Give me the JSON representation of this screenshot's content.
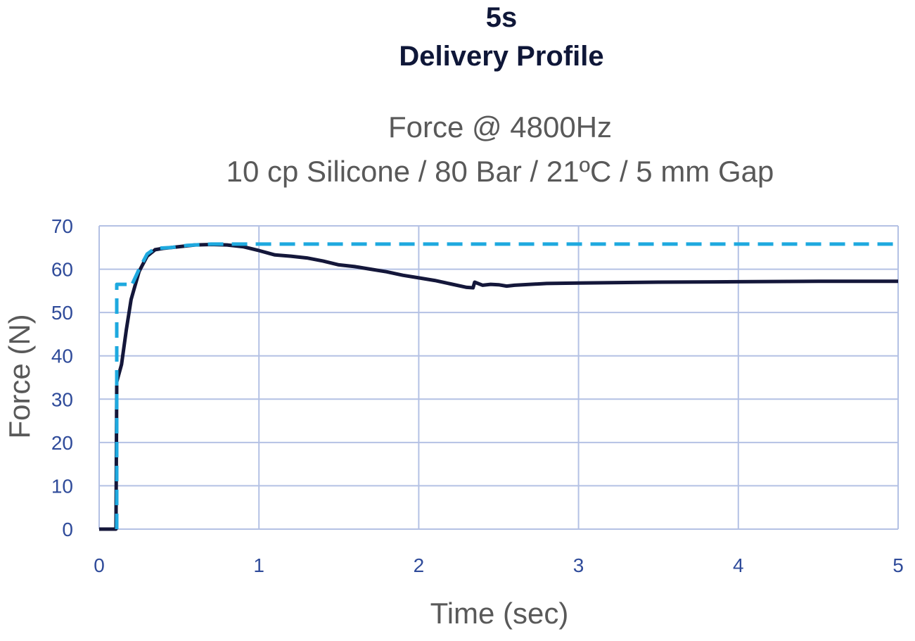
{
  "chart_data": {
    "type": "line",
    "title": "5s",
    "title_line2": "Delivery Profile",
    "subtitle_line1": "Force @ 4800Hz",
    "subtitle_line2": "10 cp Silicone / 80 Bar / 21ºC / 5 mm Gap",
    "xlabel": "Time (sec)",
    "ylabel": "Force (N)",
    "xlim": [
      0,
      5
    ],
    "ylim": [
      0,
      70
    ],
    "x_ticks": [
      "0",
      "1",
      "2",
      "3",
      "4",
      "5"
    ],
    "y_ticks": [
      "0",
      "10",
      "20",
      "30",
      "40",
      "50",
      "60",
      "70"
    ],
    "grid": true,
    "legend": "none",
    "series": [
      {
        "style": "solid",
        "color": "#14173a",
        "points": [
          [
            0,
            0
          ],
          [
            0.1,
            0
          ],
          [
            0.105,
            0
          ],
          [
            0.11,
            34
          ],
          [
            0.14,
            38
          ],
          [
            0.17,
            46
          ],
          [
            0.2,
            53
          ],
          [
            0.25,
            59.5
          ],
          [
            0.3,
            63
          ],
          [
            0.35,
            64.5
          ],
          [
            0.4,
            64.8
          ],
          [
            0.5,
            65.2
          ],
          [
            0.6,
            65.6
          ],
          [
            0.7,
            65.7
          ],
          [
            0.8,
            65.6
          ],
          [
            0.9,
            65.2
          ],
          [
            1.0,
            64.3
          ],
          [
            1.1,
            63.3
          ],
          [
            1.2,
            63.0
          ],
          [
            1.3,
            62.6
          ],
          [
            1.4,
            61.9
          ],
          [
            1.5,
            61.0
          ],
          [
            1.6,
            60.6
          ],
          [
            1.7,
            60.0
          ],
          [
            1.8,
            59.4
          ],
          [
            1.9,
            58.6
          ],
          [
            2.0,
            58.0
          ],
          [
            2.1,
            57.4
          ],
          [
            2.2,
            56.6
          ],
          [
            2.3,
            55.8
          ],
          [
            2.34,
            55.7
          ],
          [
            2.35,
            57.0
          ],
          [
            2.4,
            56.3
          ],
          [
            2.45,
            56.5
          ],
          [
            2.5,
            56.4
          ],
          [
            2.55,
            56.1
          ],
          [
            2.6,
            56.3
          ],
          [
            2.8,
            56.7
          ],
          [
            3.0,
            56.8
          ],
          [
            3.5,
            57.0
          ],
          [
            4.0,
            57.1
          ],
          [
            4.5,
            57.2
          ],
          [
            5.0,
            57.2
          ]
        ]
      },
      {
        "style": "dashed",
        "color": "#1ea9df",
        "points": [
          [
            0.11,
            0
          ],
          [
            0.11,
            56.5
          ],
          [
            0.18,
            56.5
          ],
          [
            0.2,
            56.0
          ],
          [
            0.25,
            60.0
          ],
          [
            0.3,
            63.5
          ],
          [
            0.35,
            64.8
          ],
          [
            0.45,
            65.0
          ],
          [
            0.55,
            65.5
          ],
          [
            0.7,
            65.8
          ],
          [
            1.0,
            65.8
          ],
          [
            2.0,
            65.8
          ],
          [
            3.0,
            65.8
          ],
          [
            4.0,
            65.8
          ],
          [
            5.0,
            65.8
          ]
        ]
      }
    ]
  }
}
